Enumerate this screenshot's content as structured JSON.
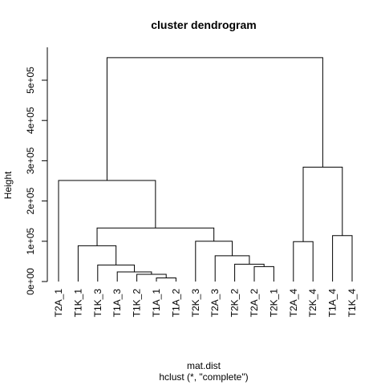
{
  "chart_data": {
    "type": "dendrogram",
    "title": "cluster dendrogram",
    "ylabel": "Height",
    "xlabel": "mat.dist",
    "subtitle": "hclust (*, \"complete\")",
    "ylim": [
      0,
      560000
    ],
    "yticks": [
      0,
      100000,
      200000,
      300000,
      400000,
      500000
    ],
    "ytick_labels": [
      "0e+00",
      "1e+05",
      "2e+05",
      "3e+05",
      "4e+05",
      "5e+05"
    ],
    "leaves": [
      "T2A_1",
      "T1K_1",
      "T1K_3",
      "T1A_3",
      "T1K_2",
      "T1A_1",
      "T1A_2",
      "T2K_3",
      "T2A_3",
      "T2K_2",
      "T2A_2",
      "T2K_1",
      "T2A_4",
      "T2K_4",
      "T1A_4",
      "T1K_4"
    ],
    "merges": [
      {
        "left": "T1A_1",
        "right": "T1A_2",
        "height": 9000
      },
      {
        "left": "T1K_2",
        "right": "m1",
        "height": 18000
      },
      {
        "left": "T1A_3",
        "right": "m2",
        "height": 24000
      },
      {
        "left": "T1K_3",
        "right": "m3",
        "height": 41000
      },
      {
        "left": "T1K_1",
        "right": "m4",
        "height": 89000
      },
      {
        "left": "T2A_2",
        "right": "T2K_1",
        "height": 37000
      },
      {
        "left": "T2K_2",
        "right": "m6",
        "height": 43000
      },
      {
        "left": "T2A_3",
        "right": "m7",
        "height": 64000
      },
      {
        "left": "T2K_3",
        "right": "m8",
        "height": 100000
      },
      {
        "left": "m5",
        "right": "m9",
        "height": 133000
      },
      {
        "left": "T2A_1",
        "right": "m10",
        "height": 251000
      },
      {
        "left": "T2A_4",
        "right": "T2K_4",
        "height": 99000
      },
      {
        "left": "T1A_4",
        "right": "T1K_4",
        "height": 114000
      },
      {
        "left": "m12",
        "right": "m13",
        "height": 284000
      },
      {
        "left": "m11",
        "right": "m14",
        "height": 556000
      }
    ]
  }
}
